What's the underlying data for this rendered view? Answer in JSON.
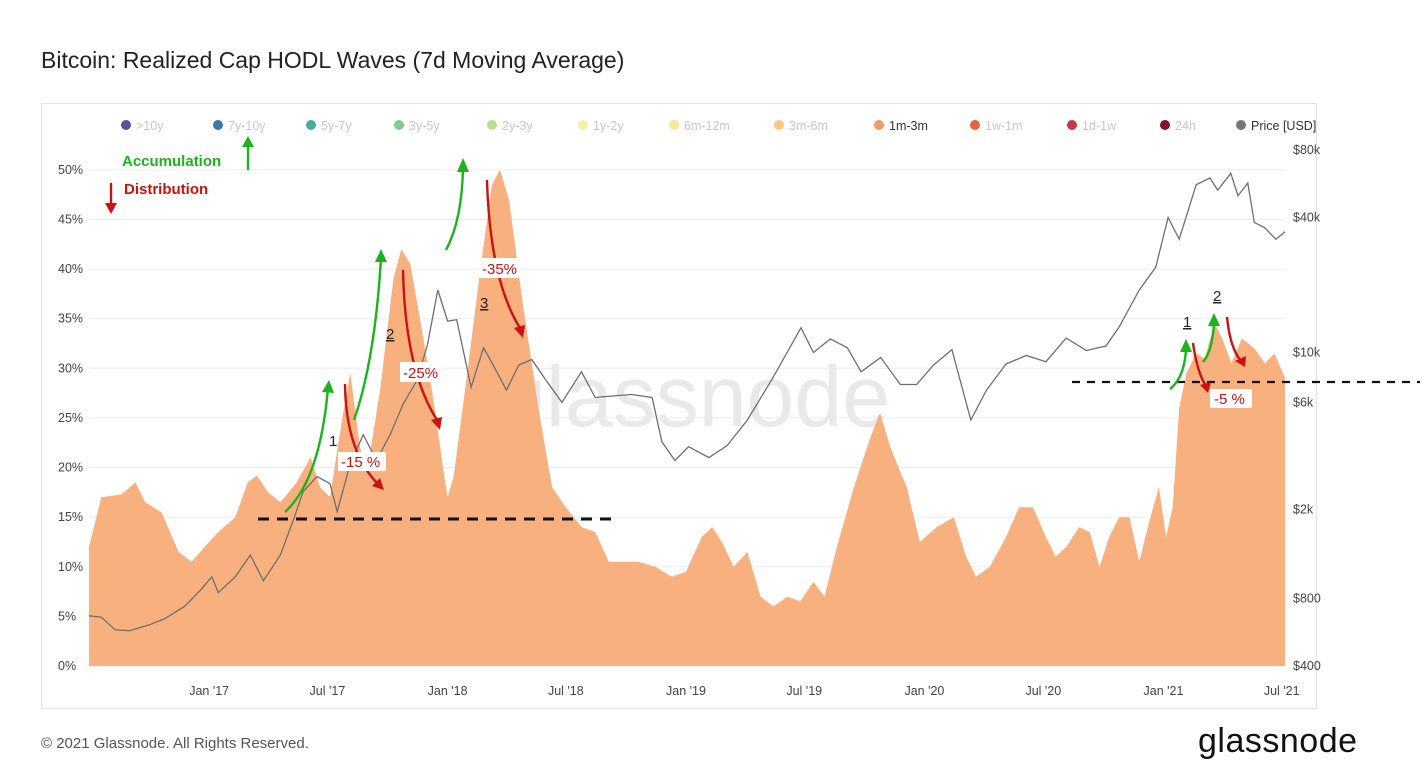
{
  "title": "Bitcoin: Realized Cap HODL Waves (7d Moving Average)",
  "footer": {
    "copyright": "© 2021 Glassnode. All Rights Reserved.",
    "brand": "glassnode"
  },
  "watermark": "glassnode",
  "colors": {
    "area": "#f9b07f",
    "price_line": "#6f6f6f",
    "green": "#1db31d",
    "red": "#cc1111",
    "dashed": "#111111"
  },
  "legend": [
    {
      "label": ">10y",
      "color": "#5b4e9a",
      "active": false
    },
    {
      "label": "7y-10y",
      "color": "#3d78a6",
      "active": false
    },
    {
      "label": "5y-7y",
      "color": "#49ad9e",
      "active": false
    },
    {
      "label": "3y-5y",
      "color": "#86c98c",
      "active": false
    },
    {
      "label": "2y-3y",
      "color": "#b9e08e",
      "active": false
    },
    {
      "label": "1y-2y",
      "color": "#eef3a8",
      "active": false
    },
    {
      "label": "6m-12m",
      "color": "#fbe597",
      "active": false
    },
    {
      "label": "3m-6m",
      "color": "#fbc77d",
      "active": false
    },
    {
      "label": "1m-3m",
      "color": "#f79a63",
      "active": true
    },
    {
      "label": "1w-1m",
      "color": "#e8603c",
      "active": false
    },
    {
      "label": "1d-1w",
      "color": "#c93648",
      "active": false
    },
    {
      "label": "24h",
      "color": "#8d0f28",
      "active": false
    },
    {
      "label": "Price [USD]",
      "color": "#777777",
      "active": true
    }
  ],
  "annotations": {
    "accumulation": "Accumulation",
    "distribution": "Distribution",
    "left": [
      {
        "num": "1",
        "pct": "-15 %"
      },
      {
        "num": "2",
        "pct": "-25%"
      },
      {
        "num": "3",
        "pct": "-35%"
      }
    ],
    "right": [
      {
        "num": "1"
      },
      {
        "num": "2",
        "pct": "-5 %"
      }
    ]
  },
  "chart_data": {
    "type": "area",
    "ylabel_left": "",
    "ylabel_right": "",
    "y_left_ticks": [
      "0%",
      "5%",
      "10%",
      "15%",
      "20%",
      "25%",
      "30%",
      "35%",
      "40%",
      "45%",
      "50%"
    ],
    "y_left_range": [
      0,
      52
    ],
    "y_right_ticks": [
      {
        "label": "$400",
        "value": 400
      },
      {
        "label": "$800",
        "value": 800
      },
      {
        "label": "$2k",
        "value": 2000
      },
      {
        "label": "$6k",
        "value": 6000
      },
      {
        "label": "$10k",
        "value": 10000
      },
      {
        "label": "$40k",
        "value": 40000
      },
      {
        "label": "$80k",
        "value": 80000
      }
    ],
    "y_right_scale": "log",
    "y_right_range": [
      400,
      80000
    ],
    "x_ticks": [
      "Jan '17",
      "Jul '17",
      "Jan '18",
      "Jul '18",
      "Jan '19",
      "Jul '19",
      "Jan '20",
      "Jul '20",
      "Jan '21",
      "Jul '21"
    ],
    "x_range": [
      "2016-07-01",
      "2021-07-06"
    ],
    "series": [
      {
        "name": "1m-3m",
        "axis": "left",
        "points": [
          [
            "2016-07-01",
            12
          ],
          [
            "2016-07-20",
            17
          ],
          [
            "2016-08-20",
            17.3
          ],
          [
            "2016-09-10",
            18.5
          ],
          [
            "2016-09-25",
            16.5
          ],
          [
            "2016-10-20",
            15.5
          ],
          [
            "2016-11-15",
            11.5
          ],
          [
            "2016-12-05",
            10.5
          ],
          [
            "2016-12-25",
            12
          ],
          [
            "2017-01-15",
            13.5
          ],
          [
            "2017-02-10",
            15
          ],
          [
            "2017-03-01",
            18.5
          ],
          [
            "2017-03-15",
            19.2
          ],
          [
            "2017-04-01",
            17.5
          ],
          [
            "2017-04-20",
            16.5
          ],
          [
            "2017-05-15",
            18.5
          ],
          [
            "2017-06-05",
            21
          ],
          [
            "2017-06-20",
            18
          ],
          [
            "2017-07-05",
            17
          ],
          [
            "2017-07-25",
            25.5
          ],
          [
            "2017-08-05",
            29.5
          ],
          [
            "2017-08-20",
            22
          ],
          [
            "2017-09-01",
            20
          ],
          [
            "2017-09-20",
            28
          ],
          [
            "2017-10-10",
            39
          ],
          [
            "2017-10-22",
            42
          ],
          [
            "2017-11-05",
            40.5
          ],
          [
            "2017-11-25",
            33
          ],
          [
            "2017-12-10",
            27
          ],
          [
            "2017-12-25",
            20
          ],
          [
            "2018-01-01",
            17
          ],
          [
            "2018-01-10",
            19
          ],
          [
            "2018-02-01",
            30
          ],
          [
            "2018-02-20",
            40
          ],
          [
            "2018-03-10",
            48.5
          ],
          [
            "2018-03-22",
            50
          ],
          [
            "2018-04-05",
            47
          ],
          [
            "2018-04-25",
            37
          ],
          [
            "2018-05-20",
            26
          ],
          [
            "2018-06-10",
            18
          ],
          [
            "2018-07-01",
            16
          ],
          [
            "2018-07-25",
            14
          ],
          [
            "2018-08-15",
            13.5
          ],
          [
            "2018-09-05",
            10.5
          ],
          [
            "2018-09-25",
            10.5
          ],
          [
            "2018-10-20",
            10.5
          ],
          [
            "2018-11-15",
            10
          ],
          [
            "2018-12-10",
            9
          ],
          [
            "2019-01-01",
            9.5
          ],
          [
            "2019-01-25",
            13
          ],
          [
            "2019-02-10",
            14
          ],
          [
            "2019-02-25",
            12.5
          ],
          [
            "2019-03-15",
            10
          ],
          [
            "2019-04-05",
            11.5
          ],
          [
            "2019-04-25",
            7
          ],
          [
            "2019-05-15",
            6
          ],
          [
            "2019-06-05",
            7
          ],
          [
            "2019-06-25",
            6.5
          ],
          [
            "2019-07-15",
            8.5
          ],
          [
            "2019-08-01",
            7
          ],
          [
            "2019-08-20",
            12
          ],
          [
            "2019-09-15",
            18
          ],
          [
            "2019-10-10",
            23
          ],
          [
            "2019-10-25",
            25.5
          ],
          [
            "2019-11-10",
            22
          ],
          [
            "2019-12-05",
            18
          ],
          [
            "2019-12-25",
            12.5
          ],
          [
            "2020-01-20",
            14
          ],
          [
            "2020-02-15",
            15
          ],
          [
            "2020-03-05",
            11
          ],
          [
            "2020-03-20",
            9
          ],
          [
            "2020-04-10",
            10
          ],
          [
            "2020-05-05",
            13
          ],
          [
            "2020-05-25",
            16
          ],
          [
            "2020-06-15",
            16
          ],
          [
            "2020-07-05",
            13
          ],
          [
            "2020-07-20",
            11
          ],
          [
            "2020-08-05",
            12
          ],
          [
            "2020-08-25",
            14
          ],
          [
            "2020-09-10",
            13.5
          ],
          [
            "2020-09-25",
            10
          ],
          [
            "2020-10-10",
            13
          ],
          [
            "2020-10-25",
            15
          ],
          [
            "2020-11-10",
            15
          ],
          [
            "2020-11-25",
            10.5
          ],
          [
            "2020-12-10",
            14.5
          ],
          [
            "2020-12-25",
            18
          ],
          [
            "2021-01-05",
            13
          ],
          [
            "2021-01-15",
            16
          ],
          [
            "2021-01-25",
            26
          ],
          [
            "2021-02-05",
            29.5
          ],
          [
            "2021-02-20",
            31.5
          ],
          [
            "2021-03-05",
            31
          ],
          [
            "2021-03-20",
            34.5
          ],
          [
            "2021-04-01",
            33
          ],
          [
            "2021-04-15",
            30.5
          ],
          [
            "2021-05-01",
            33
          ],
          [
            "2021-05-20",
            32
          ],
          [
            "2021-06-05",
            30.5
          ],
          [
            "2021-06-20",
            31.5
          ],
          [
            "2021-07-06",
            29
          ]
        ]
      },
      {
        "name": "Price [USD]",
        "axis": "right",
        "points": [
          [
            "2016-07-01",
            670
          ],
          [
            "2016-07-20",
            660
          ],
          [
            "2016-08-10",
            580
          ],
          [
            "2016-09-01",
            575
          ],
          [
            "2016-10-01",
            610
          ],
          [
            "2016-10-25",
            650
          ],
          [
            "2016-11-25",
            740
          ],
          [
            "2016-12-20",
            880
          ],
          [
            "2017-01-05",
            1000
          ],
          [
            "2017-01-15",
            850
          ],
          [
            "2017-02-10",
            1000
          ],
          [
            "2017-03-05",
            1250
          ],
          [
            "2017-03-25",
            960
          ],
          [
            "2017-04-20",
            1250
          ],
          [
            "2017-05-10",
            1800
          ],
          [
            "2017-05-25",
            2400
          ],
          [
            "2017-06-15",
            2800
          ],
          [
            "2017-07-05",
            2600
          ],
          [
            "2017-07-16",
            1950
          ],
          [
            "2017-08-05",
            3200
          ],
          [
            "2017-08-25",
            4300
          ],
          [
            "2017-09-14",
            3300
          ],
          [
            "2017-10-05",
            4300
          ],
          [
            "2017-10-25",
            5900
          ],
          [
            "2017-11-15",
            7500
          ],
          [
            "2017-12-01",
            10800
          ],
          [
            "2017-12-17",
            19000
          ],
          [
            "2018-01-01",
            13800
          ],
          [
            "2018-01-15",
            14000
          ],
          [
            "2018-02-06",
            7000
          ],
          [
            "2018-02-25",
            10500
          ],
          [
            "2018-03-10",
            9000
          ],
          [
            "2018-04-01",
            6800
          ],
          [
            "2018-04-20",
            8800
          ],
          [
            "2018-05-10",
            9300
          ],
          [
            "2018-06-01",
            7500
          ],
          [
            "2018-06-25",
            6000
          ],
          [
            "2018-07-25",
            8200
          ],
          [
            "2018-08-15",
            6300
          ],
          [
            "2018-09-10",
            6400
          ],
          [
            "2018-10-10",
            6500
          ],
          [
            "2018-11-10",
            6300
          ],
          [
            "2018-11-25",
            4000
          ],
          [
            "2018-12-15",
            3300
          ],
          [
            "2019-01-05",
            3800
          ],
          [
            "2019-02-05",
            3400
          ],
          [
            "2019-03-05",
            3850
          ],
          [
            "2019-04-05",
            5000
          ],
          [
            "2019-05-15",
            7800
          ],
          [
            "2019-06-26",
            12900
          ],
          [
            "2019-07-15",
            10000
          ],
          [
            "2019-08-10",
            11500
          ],
          [
            "2019-09-05",
            10500
          ],
          [
            "2019-09-26",
            8200
          ],
          [
            "2019-10-26",
            9500
          ],
          [
            "2019-11-25",
            7200
          ],
          [
            "2019-12-20",
            7200
          ],
          [
            "2020-01-15",
            8800
          ],
          [
            "2020-02-12",
            10300
          ],
          [
            "2020-03-12",
            5000
          ],
          [
            "2020-04-05",
            6800
          ],
          [
            "2020-05-05",
            8900
          ],
          [
            "2020-06-05",
            9700
          ],
          [
            "2020-07-05",
            9100
          ],
          [
            "2020-08-05",
            11600
          ],
          [
            "2020-09-05",
            10200
          ],
          [
            "2020-10-05",
            10700
          ],
          [
            "2020-10-25",
            13000
          ],
          [
            "2020-11-25",
            19000
          ],
          [
            "2020-12-20",
            24000
          ],
          [
            "2021-01-08",
            40000
          ],
          [
            "2021-01-25",
            32000
          ],
          [
            "2021-02-20",
            56000
          ],
          [
            "2021-03-13",
            60000
          ],
          [
            "2021-03-25",
            53000
          ],
          [
            "2021-04-14",
            63000
          ],
          [
            "2021-04-25",
            50000
          ],
          [
            "2021-05-10",
            57000
          ],
          [
            "2021-05-20",
            38000
          ],
          [
            "2021-06-05",
            36000
          ],
          [
            "2021-06-22",
            32000
          ],
          [
            "2021-07-06",
            34500
          ]
        ]
      }
    ]
  }
}
